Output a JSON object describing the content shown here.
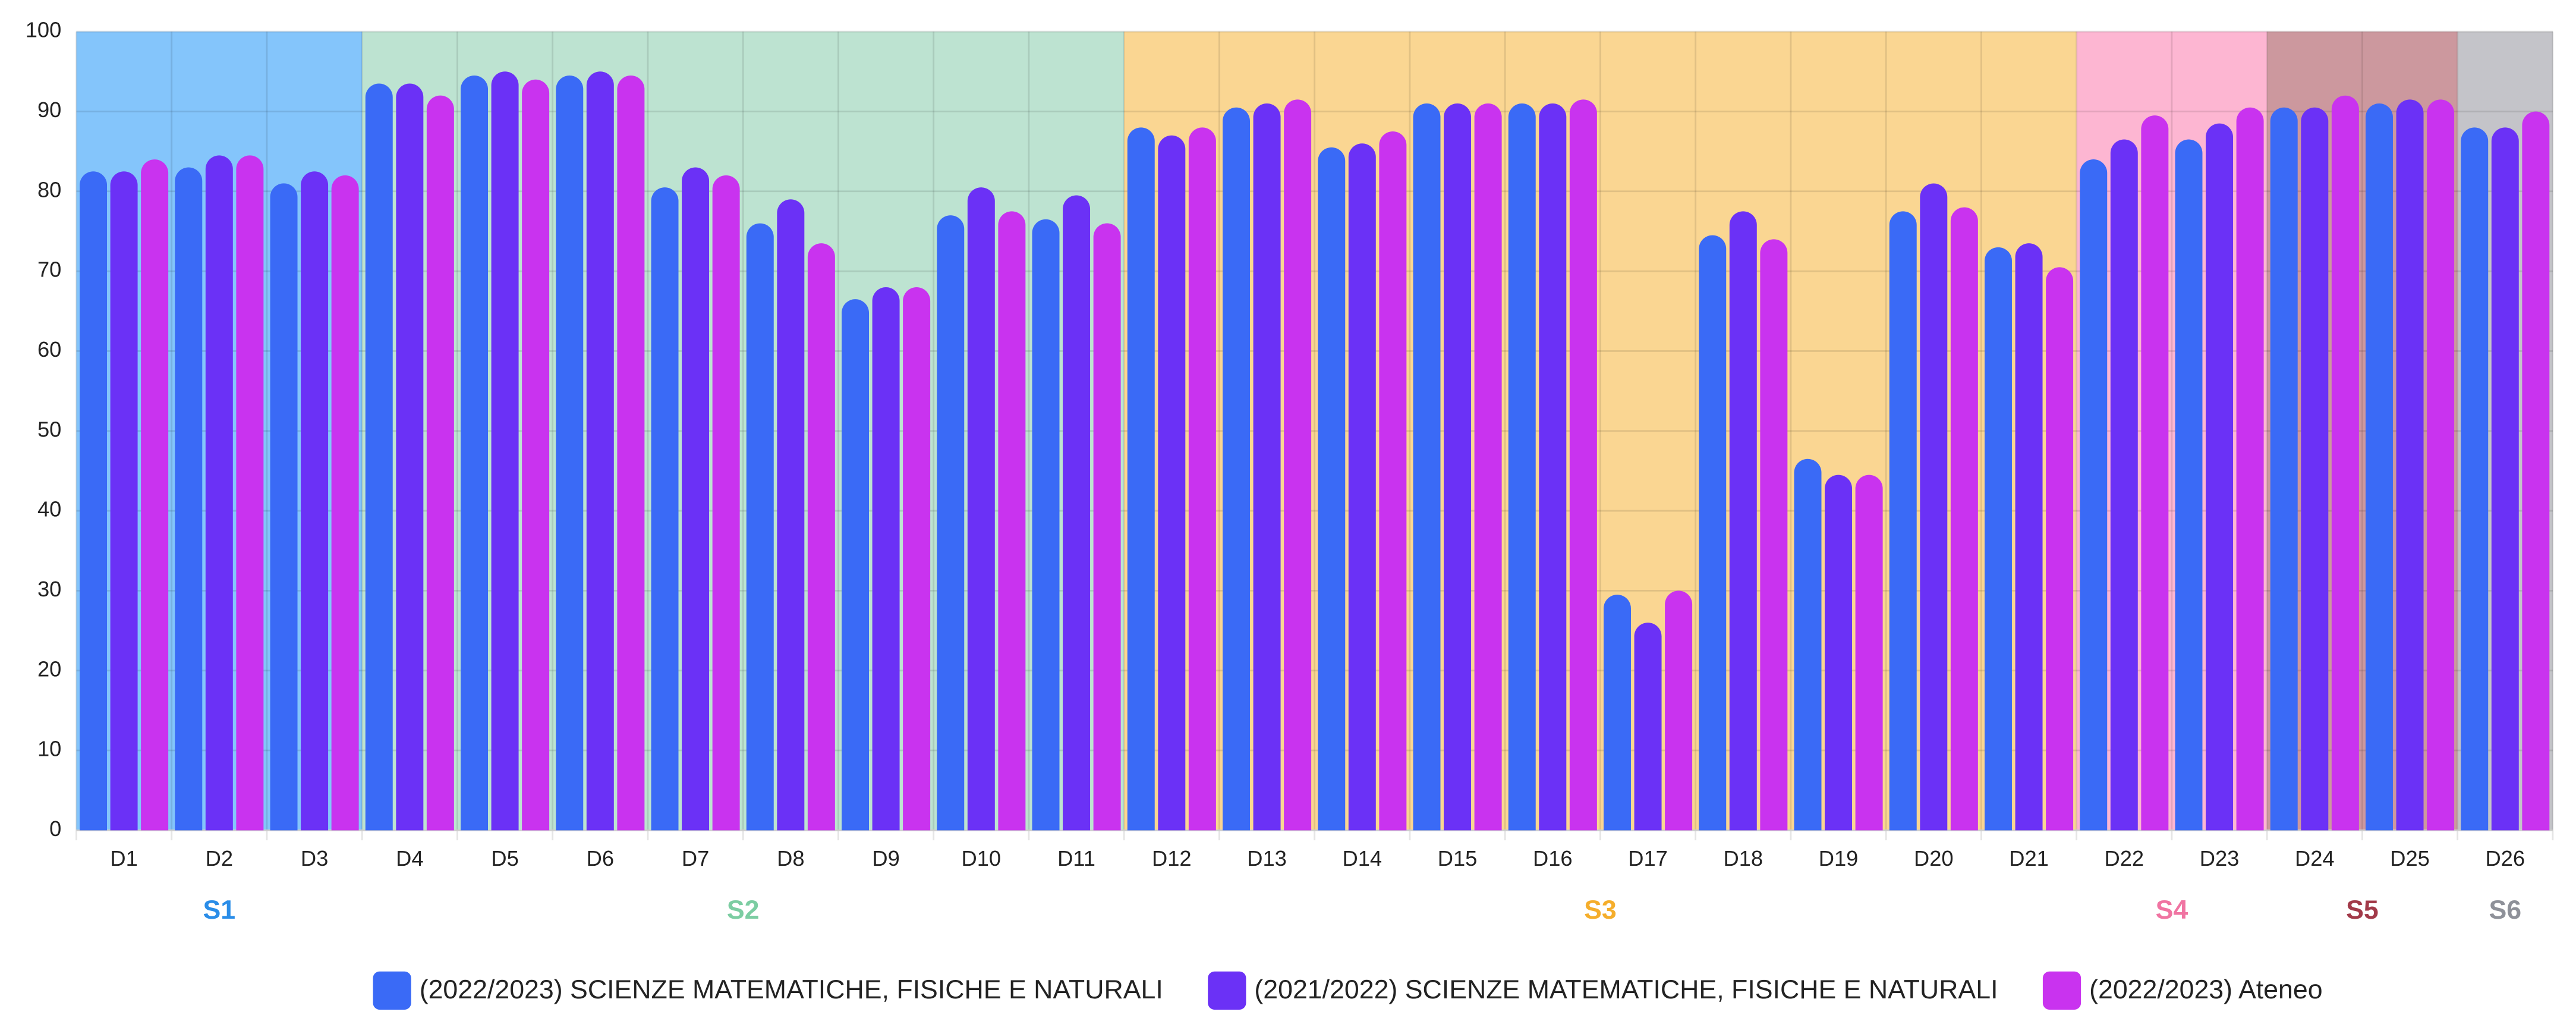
{
  "chart_data": {
    "type": "bar",
    "categories": [
      "D1",
      "D2",
      "D3",
      "D4",
      "D5",
      "D6",
      "D7",
      "D8",
      "D9",
      "D10",
      "D11",
      "D12",
      "D13",
      "D14",
      "D15",
      "D16",
      "D17",
      "D18",
      "D19",
      "D20",
      "D21",
      "D22",
      "D23",
      "D24",
      "D25",
      "D26"
    ],
    "series": [
      {
        "name": "(2022/2023) SCIENZE MATEMATICHE, FISICHE E NATURALI",
        "color": "#3a6af6",
        "values": [
          82.5,
          83,
          81,
          93.5,
          94.5,
          94.5,
          80.5,
          76,
          66.5,
          77,
          76.5,
          88,
          90.5,
          85.5,
          91,
          91,
          29.5,
          74.5,
          46.5,
          77.5,
          73,
          84,
          86.5,
          90.5,
          91,
          88
        ]
      },
      {
        "name": "(2021/2022) SCIENZE MATEMATICHE, FISICHE E NATURALI",
        "color": "#6b31f6",
        "values": [
          82.5,
          84.5,
          82.5,
          93.5,
          95,
          95,
          83,
          79,
          68,
          80.5,
          79.5,
          87,
          91,
          86,
          91,
          91,
          26,
          77.5,
          44.5,
          81,
          73.5,
          86.5,
          88.5,
          90.5,
          91.5,
          88
        ]
      },
      {
        "name": "(2022/2023) Ateneo",
        "color": "#c933ef",
        "values": [
          84,
          84.5,
          82,
          92,
          94,
          94.5,
          82,
          73.5,
          68,
          77.5,
          76,
          88,
          91.5,
          87.5,
          91,
          91.5,
          30,
          74,
          44.5,
          78,
          70.5,
          89.5,
          90.5,
          92,
          91.5,
          90
        ]
      }
    ],
    "sections": [
      {
        "name": "S1",
        "color": "#84c5fb",
        "label_color": "#2a8de8",
        "categories": [
          "D1",
          "D2",
          "D3"
        ]
      },
      {
        "name": "S2",
        "color": "#bde3d1",
        "label_color": "#7ccda2",
        "categories": [
          "D4",
          "D5",
          "D6",
          "D7",
          "D8",
          "D9",
          "D10",
          "D11"
        ]
      },
      {
        "name": "S3",
        "color": "#fad692",
        "label_color": "#f5ae2c",
        "categories": [
          "D12",
          "D13",
          "D14",
          "D15",
          "D16",
          "D17",
          "D18",
          "D19",
          "D20",
          "D21"
        ]
      },
      {
        "name": "S4",
        "color": "#fdb6d2",
        "label_color": "#f074a2",
        "categories": [
          "D22",
          "D23"
        ]
      },
      {
        "name": "S5",
        "color": "#cc989e",
        "label_color": "#a23a49",
        "categories": [
          "D24",
          "D25"
        ]
      },
      {
        "name": "S6",
        "color": "#c4c4c9",
        "label_color": "#8e9199",
        "categories": [
          "D26"
        ]
      }
    ],
    "ylim": [
      0,
      100
    ],
    "yticks": [
      0,
      10,
      20,
      30,
      40,
      50,
      60,
      70,
      80,
      90,
      100
    ],
    "grid": true,
    "legend": "bottom"
  }
}
